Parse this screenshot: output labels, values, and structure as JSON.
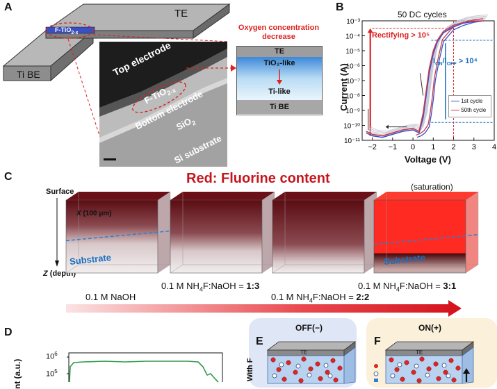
{
  "panels": {
    "A": "A",
    "B": "B",
    "C": "C",
    "D": "D",
    "E": "E",
    "F": "F"
  },
  "panel_a": {
    "te": "TE",
    "ti_be": "Ti BE",
    "film_main": "F-TiO",
    "film_sub": "2-x",
    "tem_top": "Top electrode",
    "tem_film_main": "F-TiO",
    "tem_film_sub": "2-x",
    "tem_bottom": "Bottom electrode",
    "tem_sio2_main": "SiO",
    "tem_sio2_sub": "2",
    "tem_si": "Si substrate",
    "oxygen_note": "Oxygen concentration decrease",
    "stack_te": "TE",
    "stack_tio2": "TiO₂-like",
    "stack_ti": "Ti-like",
    "stack_tibe": "Ti BE"
  },
  "chart_data": {
    "type": "line",
    "title": "50 DC cycles",
    "xlabel": "Voltage (V)",
    "ylabel": "Current (A)",
    "xlim": [
      -2.5,
      4
    ],
    "ylim_log10": [
      -11,
      -3
    ],
    "x_ticks": [
      "−2",
      "−1",
      "0",
      "1",
      "2",
      "3",
      "4"
    ],
    "y_ticks": [
      "10⁻¹¹",
      "10⁻¹⁰",
      "10⁻⁹",
      "10⁻⁸",
      "10⁻⁷",
      "10⁻⁶",
      "10⁻⁵",
      "10⁻⁴",
      "10⁻³"
    ],
    "legend": [
      "1st cycle",
      "50th cycle"
    ],
    "annotations": {
      "rectifying": "Rectifying > 10⁵",
      "onoff": "I",
      "onoff_on": "ON",
      "onoff_mid": "/I",
      "onoff_off": "OFF",
      "onoff_val": " > 10⁴"
    },
    "series": [
      {
        "name": "1st cycle",
        "color": "#3a4fc4",
        "x": [
          -2.3,
          -2.0,
          -1.5,
          -1.0,
          -0.5,
          0.0,
          0.3,
          0.5,
          0.8,
          1.0,
          1.2,
          1.5,
          2.0,
          2.5,
          3.0,
          3.5
        ],
        "log_y": [
          -10.5,
          -10.7,
          -10.8,
          -10.6,
          -10.4,
          -10.3,
          -10.5,
          -9.5,
          -6.5,
          -5.2,
          -4.4,
          -3.8,
          -3.4,
          -3.15,
          -3.05,
          -3.0
        ]
      },
      {
        "name": "50th cycle",
        "color": "#c83a4a",
        "x": [
          -2.3,
          -2.0,
          -1.5,
          -1.0,
          -0.5,
          0.0,
          0.3,
          0.5,
          0.8,
          1.0,
          1.2,
          1.5,
          2.0,
          2.5,
          3.0,
          3.5
        ],
        "log_y": [
          -10.4,
          -10.6,
          -10.7,
          -10.5,
          -10.3,
          -10.2,
          -10.4,
          -9.2,
          -6.2,
          -5.0,
          -4.3,
          -3.7,
          -3.3,
          -3.1,
          -3.02,
          -3.0
        ]
      }
    ],
    "reverse_sweep": {
      "x": [
        3.5,
        3.0,
        2.5,
        2.0,
        1.5,
        1.3,
        1.1,
        1.0,
        0.9,
        0.8,
        0.6,
        0.4,
        0.2
      ],
      "log_y": [
        -3.0,
        -3.1,
        -3.3,
        -3.6,
        -4.4,
        -5.6,
        -7.0,
        -8.3,
        -9.3,
        -10.1,
        -10.5,
        -10.7,
        -10.8
      ]
    }
  },
  "panel_c": {
    "title": "Red: Fluorine content",
    "surface": "Surface",
    "depth_z": "Z",
    "depth_label": " (depth)",
    "x_label": "X",
    "x_unit": " (100 μm)",
    "substrate1": "Substrate",
    "substrate4": "Substrate",
    "saturation": "(saturation)",
    "cap1": "0.1 M NaOH",
    "cap2_pre": "0.1 M NH",
    "cap2_sub": "4",
    "cap2_mid": "F:NaOH = ",
    "cap2_ratio": "1:3",
    "cap3_pre": "0.1 M NH",
    "cap3_sub": "4",
    "cap3_mid": "F:NaOH = ",
    "cap3_ratio": "2:2",
    "cap4_pre": "0.1 M NH",
    "cap4_sub": "4",
    "cap4_mid": "F:NaOH = ",
    "cap4_ratio": "3:1"
  },
  "panel_d": {
    "ylabel": "nt (a.u.)",
    "tick_1e6": "10",
    "tick_1e6_exp": "6",
    "tick_1e5": "10",
    "tick_1e5_exp": "5"
  },
  "panel_e": {
    "title": "OFF(−)",
    "te": "TE",
    "side": "With F"
  },
  "panel_f": {
    "title": "ON(+)",
    "te": "TE"
  }
}
